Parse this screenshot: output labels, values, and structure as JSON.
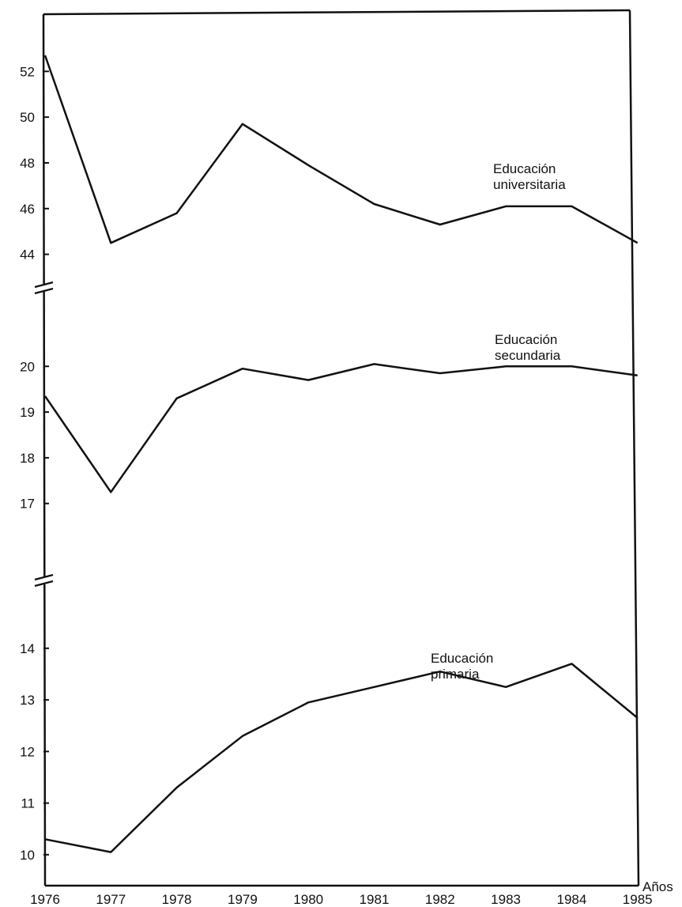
{
  "chart_data": {
    "type": "line",
    "xlabel": "Años",
    "x": [
      "1976",
      "1977",
      "1978",
      "1979",
      "1980",
      "1981",
      "1982",
      "1983",
      "1984",
      "1985"
    ],
    "panels": [
      {
        "yticks": [
          44,
          46,
          48,
          50,
          52
        ],
        "ylim": [
          42.5,
          54.5
        ],
        "series": [
          {
            "name": "Educación universitaria",
            "name_lines": [
              "Educación",
              "universitaria"
            ],
            "values": [
              52.7,
              44.5,
              45.8,
              49.7,
              47.9,
              46.2,
              45.3,
              46.1,
              46.1,
              44.5
            ]
          }
        ]
      },
      {
        "yticks": [
          17,
          18,
          19,
          20
        ],
        "ylim": [
          15.3,
          21.7
        ],
        "series": [
          {
            "name": "Educación secundaria",
            "name_lines": [
              "Educación",
              "secundaria"
            ],
            "values": [
              19.35,
              17.25,
              19.3,
              19.95,
              19.7,
              20.05,
              19.85,
              20.0,
              20.0,
              19.8
            ]
          }
        ]
      },
      {
        "yticks": [
          10,
          11,
          12,
          13,
          14
        ],
        "ylim": [
          9.4,
          15.3
        ],
        "series": [
          {
            "name": "Educación primaria",
            "name_lines": [
              "Educación",
              "primaria"
            ],
            "values": [
              10.3,
              10.05,
              11.3,
              12.3,
              12.95,
              13.25,
              13.55,
              13.25,
              13.7,
              12.65
            ]
          }
        ]
      }
    ]
  }
}
